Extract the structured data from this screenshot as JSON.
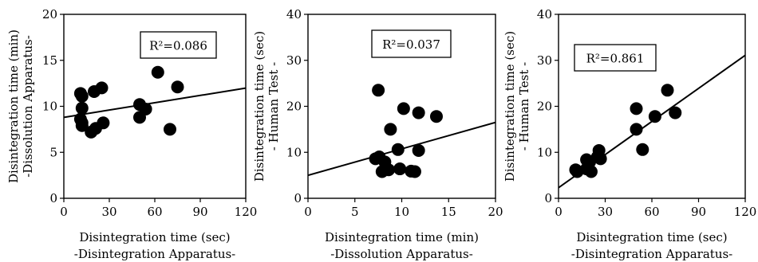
{
  "chart_data": [
    {
      "type": "scatter",
      "xlim": [
        0,
        120
      ],
      "ylim": [
        0,
        20
      ],
      "xticks": [
        "0",
        "30",
        "60",
        "90",
        "120"
      ],
      "yticks": [
        "0",
        "5",
        "10",
        "15",
        "20"
      ],
      "xlabel": [
        "Disintegration time (sec)",
        "-Disintegration Apparatus-"
      ],
      "ylabel": [
        "Disintegration time (min)",
        "-Dissolution Apparatus-"
      ],
      "annotation": "R²=0.086",
      "grid": false,
      "trendline": {
        "intercept": 8.8,
        "slope": 0.0265
      },
      "points": [
        {
          "x": 11,
          "y": 11.4
        },
        {
          "x": 12,
          "y": 11.1
        },
        {
          "x": 12,
          "y": 9.8
        },
        {
          "x": 11,
          "y": 8.6
        },
        {
          "x": 12,
          "y": 8.2
        },
        {
          "x": 12,
          "y": 7.9
        },
        {
          "x": 18,
          "y": 7.2
        },
        {
          "x": 21,
          "y": 7.6
        },
        {
          "x": 20,
          "y": 11.6
        },
        {
          "x": 25,
          "y": 12.0
        },
        {
          "x": 26,
          "y": 8.2
        },
        {
          "x": 50,
          "y": 10.2
        },
        {
          "x": 54,
          "y": 9.7
        },
        {
          "x": 50,
          "y": 8.8
        },
        {
          "x": 62,
          "y": 13.7
        },
        {
          "x": 70,
          "y": 7.5
        },
        {
          "x": 75,
          "y": 12.1
        }
      ]
    },
    {
      "type": "scatter",
      "xlim": [
        0,
        20
      ],
      "ylim": [
        0,
        40
      ],
      "xticks": [
        "0",
        "5",
        "10",
        "15",
        "20"
      ],
      "yticks": [
        "0",
        "10",
        "20",
        "30",
        "40"
      ],
      "xlabel": [
        "Disintegration time (min)",
        "-Dissolution Apparatus-"
      ],
      "ylabel": [
        "Disintegration time (sec)",
        "- Human Test -"
      ],
      "annotation": "R²=0.037",
      "grid": false,
      "trendline": {
        "intercept": 5.0,
        "slope": 0.575
      },
      "points": [
        {
          "x": 7.5,
          "y": 23.5
        },
        {
          "x": 7.2,
          "y": 8.6
        },
        {
          "x": 7.6,
          "y": 9.0
        },
        {
          "x": 7.9,
          "y": 5.8
        },
        {
          "x": 8.2,
          "y": 7.9
        },
        {
          "x": 8.6,
          "y": 6.2
        },
        {
          "x": 8.8,
          "y": 15.0
        },
        {
          "x": 9.6,
          "y": 10.6
        },
        {
          "x": 9.8,
          "y": 6.4
        },
        {
          "x": 10.2,
          "y": 19.5
        },
        {
          "x": 11.0,
          "y": 5.9
        },
        {
          "x": 11.4,
          "y": 5.8
        },
        {
          "x": 11.8,
          "y": 10.4
        },
        {
          "x": 11.8,
          "y": 18.6
        },
        {
          "x": 13.7,
          "y": 17.8
        }
      ]
    },
    {
      "type": "scatter",
      "xlim": [
        0,
        120
      ],
      "ylim": [
        0,
        40
      ],
      "xticks": [
        "0",
        "30",
        "60",
        "90",
        "120"
      ],
      "yticks": [
        "0",
        "10",
        "20",
        "30",
        "40"
      ],
      "xlabel": [
        "Disintegration time (sec)",
        "-Disintegration Apparatus-"
      ],
      "ylabel": [
        "Disintegration time (sec)",
        "- Human Test -"
      ],
      "annotation": "R²=0.861",
      "grid": false,
      "trendline": {
        "intercept": 2.3,
        "slope": 0.24
      },
      "points": [
        {
          "x": 11,
          "y": 6.2
        },
        {
          "x": 12,
          "y": 5.8
        },
        {
          "x": 18,
          "y": 6.4
        },
        {
          "x": 18,
          "y": 8.4
        },
        {
          "x": 20,
          "y": 7.9
        },
        {
          "x": 21,
          "y": 5.8
        },
        {
          "x": 25,
          "y": 9.0
        },
        {
          "x": 26,
          "y": 10.4
        },
        {
          "x": 27,
          "y": 8.6
        },
        {
          "x": 50,
          "y": 19.5
        },
        {
          "x": 50,
          "y": 15.0
        },
        {
          "x": 54,
          "y": 10.6
        },
        {
          "x": 62,
          "y": 17.8
        },
        {
          "x": 70,
          "y": 23.5
        },
        {
          "x": 75,
          "y": 18.6
        }
      ]
    }
  ]
}
